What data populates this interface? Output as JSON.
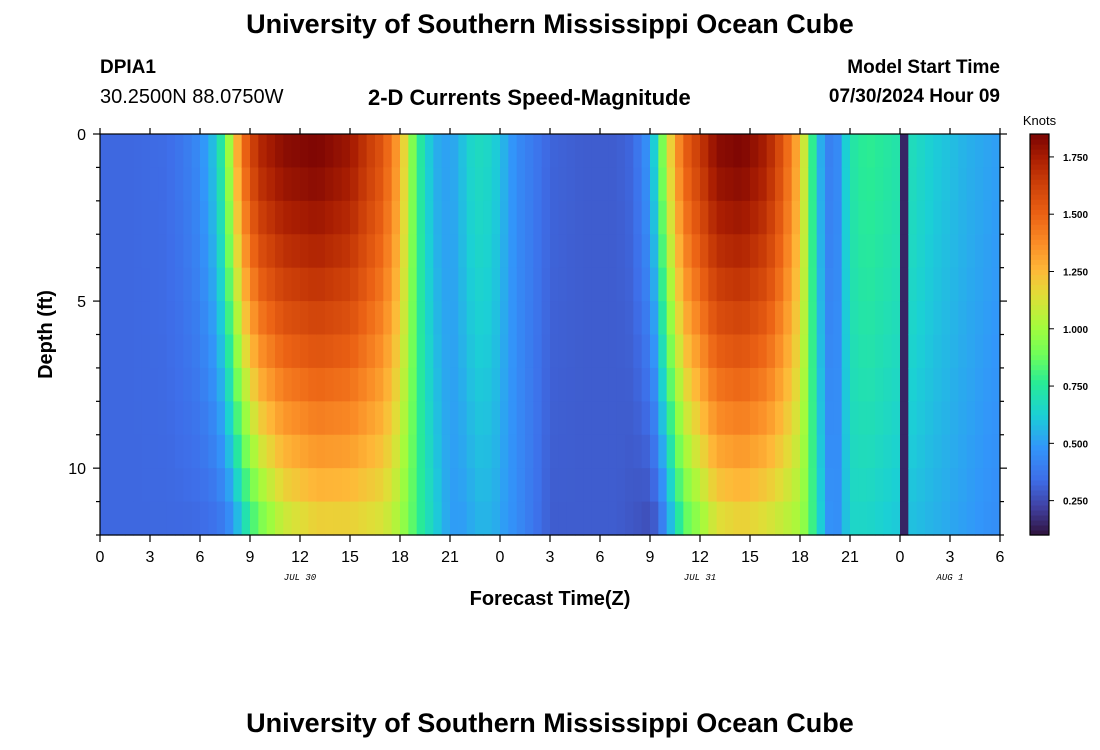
{
  "header": {
    "title": "University of Southern Mississippi Ocean Cube",
    "station": "DPIA1",
    "coordinates": "30.2500N  88.0750W",
    "subtitle": "2-D Currents Speed-Magnitude",
    "model_start_label": "Model Start Time",
    "model_start_value": "07/30/2024 Hour 09"
  },
  "footer": {
    "title": "University of Southern Mississippi Ocean Cube"
  },
  "chart_data": {
    "type": "heatmap",
    "title": "2-D Currents Speed-Magnitude",
    "xlabel": "Forecast Time(Z)",
    "ylabel": "Depth (ft)",
    "x_unit": "hours since 2024-07-30 00Z",
    "xlim": [
      0,
      54
    ],
    "ylim": [
      0,
      12
    ],
    "y_inverted": true,
    "x_ticks": [
      0,
      3,
      6,
      9,
      12,
      15,
      18,
      21,
      24,
      27,
      30,
      33,
      36,
      39,
      42,
      45,
      48,
      51,
      54
    ],
    "x_tick_labels": [
      "0",
      "3",
      "6",
      "9",
      "12",
      "15",
      "18",
      "21",
      "0",
      "3",
      "6",
      "9",
      "12",
      "15",
      "18",
      "21",
      "0",
      "3",
      "6"
    ],
    "date_labels": [
      {
        "text": "JUL 30",
        "x": 12
      },
      {
        "text": "JUL 31",
        "x": 36
      },
      {
        "text": "AUG 1",
        "x": 51
      }
    ],
    "y_ticks": [
      0,
      5,
      10
    ],
    "y_tick_labels": [
      "0",
      "5",
      "10"
    ],
    "colorbar": {
      "unit": "Knots",
      "min": 0.1,
      "max": 1.85,
      "ticks": [
        0.25,
        0.5,
        0.75,
        1.0,
        1.25,
        1.5,
        1.75
      ],
      "tick_labels": [
        "0.250",
        "0.500",
        "0.750",
        "1.000",
        "1.250",
        "1.500",
        "1.750"
      ],
      "colormap": "turbo"
    },
    "speed_profile_knots": {
      "hours": [
        0,
        2,
        4,
        5,
        6,
        7,
        7.5,
        8,
        8.5,
        9.5,
        11,
        13,
        15,
        17,
        18,
        18.5,
        19,
        20,
        21,
        22,
        22.5,
        23.5,
        25,
        27,
        29,
        31,
        32,
        33,
        33.5,
        34,
        35,
        37,
        38.5,
        40,
        41,
        42,
        42.5,
        43,
        44,
        45,
        46,
        48,
        50,
        52,
        54
      ],
      "surface": [
        0.33,
        0.33,
        0.34,
        0.38,
        0.45,
        0.62,
        0.85,
        1.15,
        1.45,
        1.72,
        1.82,
        1.85,
        1.78,
        1.55,
        1.3,
        1.05,
        0.8,
        0.55,
        0.5,
        0.62,
        0.68,
        0.65,
        0.45,
        0.32,
        0.3,
        0.3,
        0.33,
        0.5,
        0.75,
        1.1,
        1.5,
        1.82,
        1.85,
        1.75,
        1.55,
        1.25,
        0.95,
        0.6,
        0.35,
        0.72,
        0.78,
        0.72,
        0.62,
        0.55,
        0.5
      ],
      "bottom": [
        0.33,
        0.33,
        0.33,
        0.33,
        0.33,
        0.35,
        0.38,
        0.45,
        0.6,
        0.85,
        1.05,
        1.15,
        1.15,
        1.1,
        1.0,
        0.9,
        0.8,
        0.65,
        0.5,
        0.5,
        0.55,
        0.55,
        0.45,
        0.3,
        0.3,
        0.3,
        0.28,
        0.25,
        0.3,
        0.45,
        0.8,
        1.1,
        1.15,
        1.1,
        1.05,
        1.0,
        0.9,
        0.7,
        0.4,
        0.65,
        0.65,
        0.6,
        0.55,
        0.5,
        0.45
      ]
    },
    "low_speed_band": {
      "x_start": 48,
      "x_end": 48.5,
      "value": 0.15
    }
  }
}
